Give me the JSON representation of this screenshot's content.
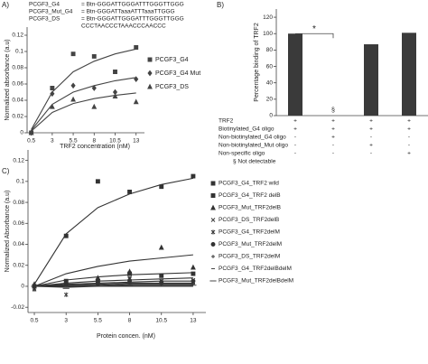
{
  "chart_data": [
    {
      "type": "scatter",
      "panel_label": "A)",
      "sequence_notes": [
        {
          "label": "PCGF3_G4",
          "text": "= Btn-GGGATTGGGATTTGGGTTGGG"
        },
        {
          "label": "PCGF3_Mut_G4",
          "text": "= Btn-GGGATTaaaATTTaaaTTGGG"
        },
        {
          "label": "PCGF3_DS",
          "text": "= Btn-GGGATTGGGATTTGGGTTGGG"
        },
        {
          "text": "CCCTAACCCTAAACCCAACCC"
        }
      ],
      "x_label": "TRF2 concentration (nM)",
      "y_label": "Normalized absorbance (a.u)",
      "x": [
        0.5,
        3,
        5.5,
        8,
        10.5,
        13
      ],
      "xlim": [
        0,
        14
      ],
      "xticks": [
        0.5,
        3,
        5.5,
        8,
        10.5,
        13
      ],
      "ylim": [
        0,
        0.13
      ],
      "yticks": [
        0,
        0.02,
        0.04,
        0.06,
        0.08,
        0.1,
        0.12
      ],
      "series": [
        {
          "name": "PCGF3_G4",
          "color": "#444444",
          "marker": "square",
          "values": [
            0,
            0.055,
            0.097,
            0.094,
            0.075,
            0.105
          ],
          "fit": [
            0.004,
            0.05,
            0.075,
            0.088,
            0.097,
            0.103
          ]
        },
        {
          "name": "PCGF3_G4 Mut",
          "color": "#444444",
          "marker": "diamond",
          "values": [
            0,
            0.048,
            0.058,
            0.055,
            0.05,
            0.066
          ],
          "fit": [
            0.003,
            0.035,
            0.05,
            0.058,
            0.064,
            0.068
          ]
        },
        {
          "name": "PCGF3_DS",
          "color": "#444444",
          "marker": "triangle",
          "values": [
            0,
            0.032,
            0.041,
            0.032,
            0.045,
            0.038
          ],
          "fit": [
            0.002,
            0.025,
            0.036,
            0.042,
            0.046,
            0.049
          ]
        }
      ]
    },
    {
      "type": "bar",
      "panel_label": "B)",
      "y_label": "Percentage binding of TRF2",
      "categories": [
        null,
        null,
        null,
        null
      ],
      "values": [
        100,
        null,
        87,
        101
      ],
      "color": "#3a3a3a",
      "ylim": [
        0,
        130
      ],
      "yticks": [
        0,
        20,
        40,
        60,
        80,
        100,
        120
      ],
      "significance_label": "*",
      "missing_label": "§",
      "table": {
        "rows": [
          {
            "label": "TRF2",
            "cells": [
              "+",
              "+",
              "+",
              "+"
            ]
          },
          {
            "label": "Biotinylated_G4 oligo",
            "cells": [
              "+",
              "+",
              "+",
              "+"
            ]
          },
          {
            "label": "Non-biotinylated_G4 oligo",
            "cells": [
              "-",
              "+",
              "-",
              "-"
            ]
          },
          {
            "label": "Non-biotinylated_Mut oligo",
            "cells": [
              "-",
              "-",
              "+",
              "-"
            ]
          },
          {
            "label": "Non-specific oligo",
            "cells": [
              "-",
              "-",
              "-",
              "+"
            ]
          }
        ]
      },
      "footnote": "§ Not detectable"
    },
    {
      "type": "scatter",
      "panel_label": "C)",
      "x_label": "Protein concen. (nM)",
      "y_label": "Normalized Absorbance (a.u)",
      "x": [
        0.5,
        3,
        5.5,
        8,
        10.5,
        13
      ],
      "xlim": [
        0,
        14
      ],
      "xticks": [
        0.5,
        3,
        5.5,
        8,
        10.5,
        13
      ],
      "ylim": [
        -0.025,
        0.13
      ],
      "yticks": [
        -0.02,
        0,
        0.02,
        0.04,
        0.06,
        0.08,
        0.1,
        0.12
      ],
      "series": [
        {
          "name": "PCGF3_G4_TRF2 wild",
          "color": "#333333",
          "marker": "square",
          "values": [
            0,
            0.048,
            0.1,
            0.09,
            0.095,
            0.105
          ],
          "fit": [
            0.002,
            0.05,
            0.075,
            0.088,
            0.097,
            0.103
          ]
        },
        {
          "name": "PCGF3_G4_TRF2 delB",
          "color": "#333333",
          "marker": "square",
          "values": [
            0,
            0.005,
            0.005,
            0.012,
            0.01,
            0.012
          ],
          "fit": [
            0,
            0.006,
            0.009,
            0.011,
            0.012,
            0.013
          ]
        },
        {
          "name": "PCGF3_Mut_TRF2delB",
          "color": "#333333",
          "marker": "triangle",
          "values": [
            0.002,
            0.004,
            0.008,
            0.014,
            0.037,
            0.018
          ],
          "fit": [
            0,
            0.012,
            0.019,
            0.024,
            0.027,
            0.03
          ]
        },
        {
          "name": "PCGF3_DS_TRF2delB",
          "color": "#333333",
          "marker": "x",
          "values": [
            -0.002,
            0.002,
            0.003,
            0.008,
            0.005,
            0.006
          ],
          "fit": [
            0,
            0.003,
            0.005,
            0.006,
            0.007,
            0.008
          ]
        },
        {
          "name": "PCGF3_G4_TRF2delM",
          "color": "#333333",
          "marker": "asterisk",
          "values": [
            -0.003,
            -0.008,
            0.005,
            0.007,
            0.005,
            0.004
          ],
          "fit": [
            0,
            0.002,
            0.003,
            0.004,
            0.005,
            0.005
          ]
        },
        {
          "name": "PCGF3_Mut_TRF2delM",
          "color": "#333333",
          "marker": "circle",
          "values": [
            0,
            0.002,
            0.003,
            0.005,
            0.004,
            0.005
          ],
          "fit": [
            0,
            0.001,
            0.002,
            0.003,
            0.003,
            0.003
          ]
        },
        {
          "name": "PCGF3_DS_TRF2delM",
          "color": "#333333",
          "marker": "plus",
          "values": [
            0,
            0.001,
            0.002,
            0.004,
            0.002,
            0.003
          ],
          "fit": [
            0,
            0.001,
            0.001,
            0.002,
            0.002,
            0.002
          ]
        },
        {
          "name": "PCGF3_G4_TRF2delBdelM",
          "color": "#333333",
          "marker": "dash",
          "values": [
            0,
            0,
            0.001,
            0.002,
            0.002,
            0.002
          ],
          "fit": [
            0,
            0,
            0,
            0.001,
            0.001,
            0.001
          ]
        },
        {
          "name": "PCGF3_Mut_TRF2delBdelM",
          "color": "#333333",
          "marker": "longdash",
          "values": [
            0,
            -0.002,
            0,
            0.001,
            0,
            0.001
          ],
          "fit": [
            0,
            -0.001,
            0,
            0,
            0,
            0
          ]
        }
      ]
    }
  ]
}
